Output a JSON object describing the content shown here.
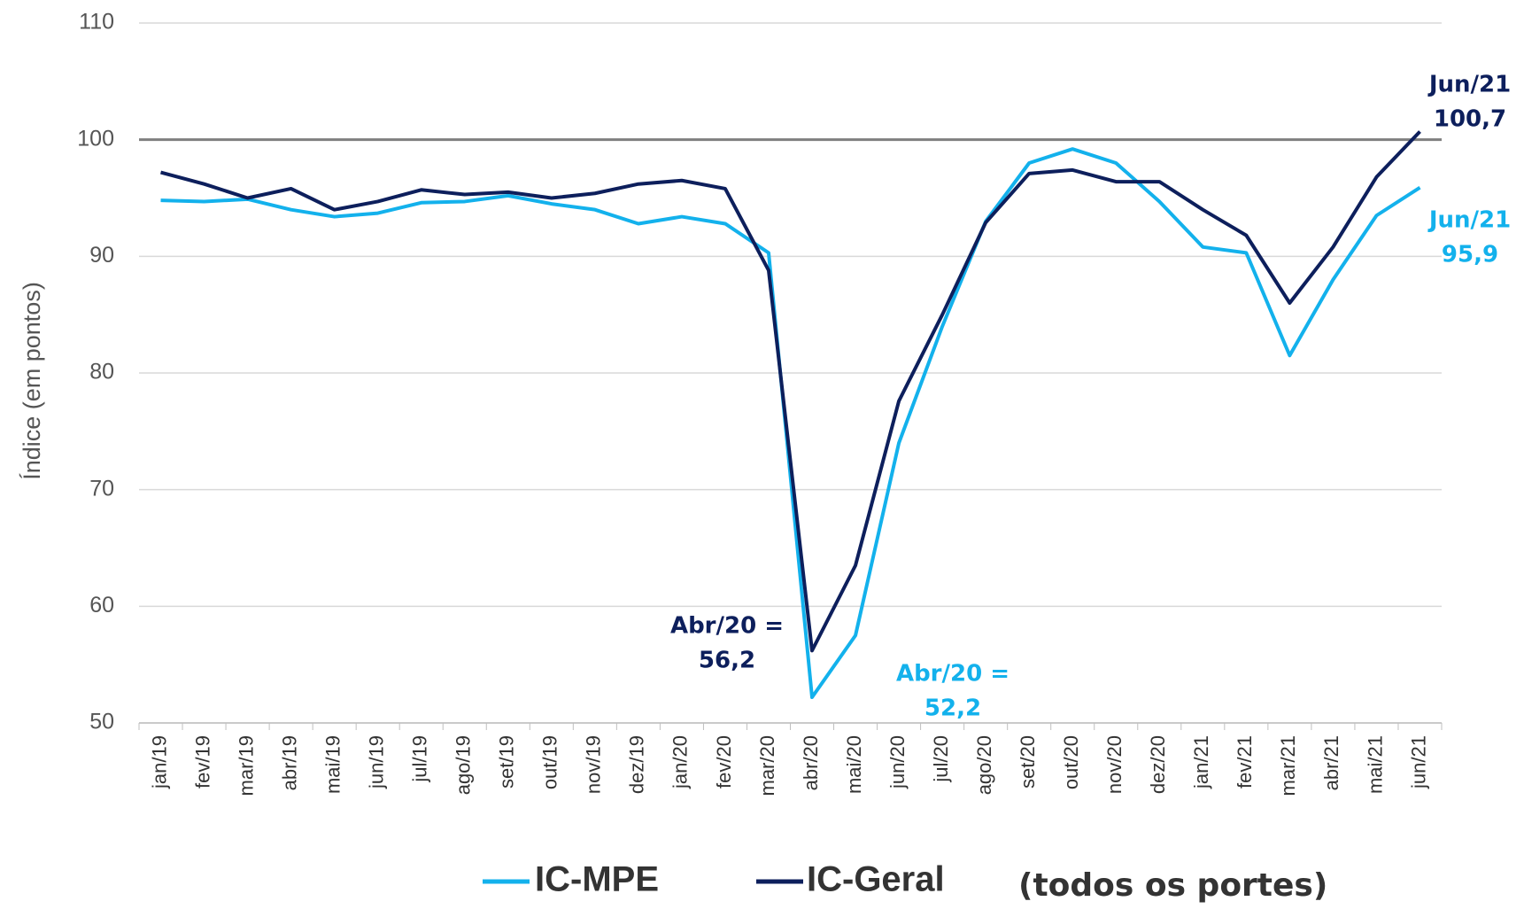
{
  "chart_data": {
    "type": "line",
    "y_label": "Índice (em pontos)",
    "categories": [
      "jan/19",
      "fev/19",
      "mar/19",
      "abr/19",
      "mai/19",
      "jun/19",
      "jul/19",
      "ago/19",
      "set/19",
      "out/19",
      "nov/19",
      "dez/19",
      "jan/20",
      "fev/20",
      "mar/20",
      "abr/20",
      "mai/20",
      "jun/20",
      "jul/20",
      "ago/20",
      "set/20",
      "out/20",
      "nov/20",
      "dez/20",
      "jan/21",
      "fev/21",
      "mar/21",
      "abr/21",
      "mai/21",
      "jun/21"
    ],
    "series": [
      {
        "name": "IC-MPE",
        "color": "#13b1ec",
        "values": [
          94.8,
          94.7,
          94.9,
          94.0,
          93.4,
          93.7,
          94.6,
          94.7,
          95.2,
          94.5,
          94.0,
          92.8,
          93.4,
          92.8,
          90.3,
          52.2,
          57.5,
          74.0,
          84.0,
          93.0,
          98.0,
          99.2,
          98.0,
          94.7,
          90.8,
          90.3,
          81.5,
          88.0,
          93.5,
          95.9
        ]
      },
      {
        "name": "IC-Geral",
        "color": "#0d1f5c",
        "values": [
          97.2,
          96.2,
          95.0,
          95.8,
          94.0,
          94.7,
          95.7,
          95.3,
          95.5,
          95.0,
          95.4,
          96.2,
          96.5,
          95.8,
          88.8,
          56.2,
          63.5,
          77.6,
          85.0,
          92.9,
          97.1,
          97.4,
          96.4,
          96.4,
          94.0,
          91.8,
          86.0,
          90.8,
          96.8,
          100.7
        ]
      }
    ],
    "legend_note": "(todos os portes)",
    "annotations": [
      {
        "lines": [
          "Jun/21",
          "100,7"
        ],
        "series": 1
      },
      {
        "lines": [
          "Jun/21",
          "95,9"
        ],
        "series": 0
      },
      {
        "lines": [
          "Abr/20 =",
          "56,2"
        ],
        "series": 1
      },
      {
        "lines": [
          "Abr/20 =",
          "52,2"
        ],
        "series": 0
      }
    ],
    "reference_line": 100,
    "ylim": [
      50,
      110
    ],
    "yticks": [
      50,
      60,
      70,
      80,
      90,
      100,
      110
    ],
    "grid": true
  }
}
